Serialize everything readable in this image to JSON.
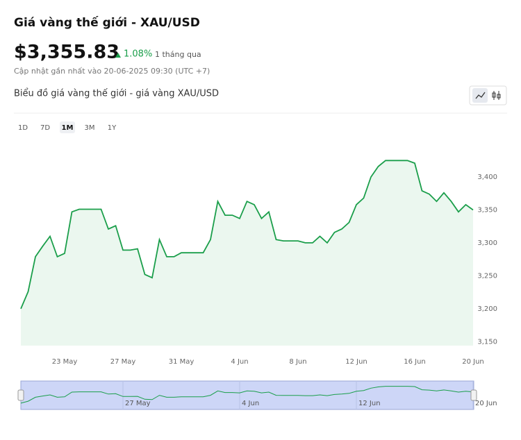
{
  "header": {
    "title": "Giá vàng thế giới - XAU/USD",
    "price": "$3,355.83",
    "change": "1.08%",
    "period": "1 tháng qua",
    "updated": "Cập nhật gần nhất vào 20-06-2025 09:30 (UTC +7)",
    "chart_title": "Biểu đồ giá vàng thế giới - giá vàng XAU/USD",
    "ranges": [
      "1D",
      "7D",
      "1M",
      "3M",
      "1Y"
    ],
    "active_range": "1M"
  },
  "chart_data": {
    "type": "line",
    "categories": [
      null,
      null,
      null,
      null,
      null,
      null,
      "23 May",
      null,
      null,
      null,
      null,
      null,
      null,
      null,
      "27 May",
      null,
      null,
      null,
      null,
      null,
      null,
      null,
      "31 May",
      null,
      null,
      null,
      null,
      null,
      null,
      null,
      "4 Jun",
      null,
      null,
      null,
      null,
      null,
      null,
      null,
      "8 Jun",
      null,
      null,
      null,
      null,
      null,
      null,
      null,
      "12 Jun",
      null,
      null,
      null,
      null,
      null,
      null,
      null,
      "16 Jun",
      null,
      null,
      null,
      null,
      null,
      null,
      null,
      "20 Jun"
    ],
    "series": [
      {
        "color": "#1a9e4a",
        "values": [
          3200,
          3226,
          3279,
          3295,
          3310,
          3279,
          3284,
          3347,
          3351,
          3351,
          3351,
          3351,
          3321,
          3326,
          3289,
          3289,
          3291,
          3252,
          3247,
          3305,
          3279,
          3279,
          3285,
          3285,
          3285,
          3285,
          3305,
          3363,
          3342,
          3342,
          3337,
          3363,
          3358,
          3337,
          3347,
          3305,
          3303,
          3303,
          3303,
          3300,
          3300,
          3310,
          3300,
          3316,
          3321,
          3331,
          3358,
          3368,
          3400,
          3416,
          3425,
          3425,
          3425,
          3425,
          3421,
          3379,
          3374,
          3363,
          3376,
          3363,
          3347,
          3358,
          3350
        ]
      }
    ],
    "ylim": [
      3144,
      3458
    ],
    "yticks": [
      {
        "value": 3150,
        "label": "3,150"
      },
      {
        "value": 3200,
        "label": "3,200"
      },
      {
        "value": 3250,
        "label": "3,250"
      },
      {
        "value": 3300,
        "label": "3,300"
      },
      {
        "value": 3350,
        "label": "3,350"
      },
      {
        "value": 3400,
        "label": "3,400"
      }
    ],
    "grid": false,
    "navigator": {
      "labels": [
        "27 May",
        "4 Jun",
        "12 Jun",
        "20 Jun"
      ]
    }
  }
}
